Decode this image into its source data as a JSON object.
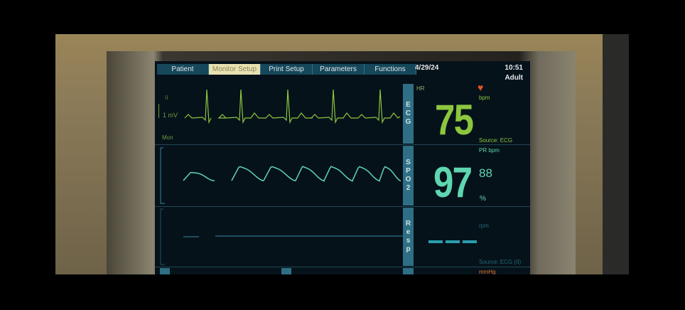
{
  "menu": {
    "tabs": [
      {
        "label": "Patient",
        "active": false
      },
      {
        "label": "Monitor Setup",
        "active": true
      },
      {
        "label": "Print Setup",
        "active": false
      },
      {
        "label": "Parameters",
        "active": false
      },
      {
        "label": "Functions",
        "active": false
      }
    ]
  },
  "header": {
    "date": "4/29/24",
    "time": "10:51",
    "patient_type": "Adult"
  },
  "ecg": {
    "side_label": "ECG",
    "lead": "II",
    "scale": "1 mV",
    "mode": "Mon",
    "color": "#8cc63f"
  },
  "hr": {
    "label": "HR",
    "value": "75",
    "unit": "bpm",
    "source": "Source: ECG",
    "icon": "heart-icon",
    "icon_color": "#e8532a"
  },
  "spo2": {
    "side_label": "SPO2",
    "pr_label": "PR bpm",
    "value": "97",
    "pr_value": "88",
    "unit": "%",
    "color": "#5fd6b0"
  },
  "resp": {
    "side_label": "Resp",
    "unit": "rpm",
    "value": "---",
    "source": "Source: ECG (II)",
    "color": "#2a9db0"
  },
  "nibp": {
    "unit": "mmHg",
    "color": "#e8742a"
  }
}
